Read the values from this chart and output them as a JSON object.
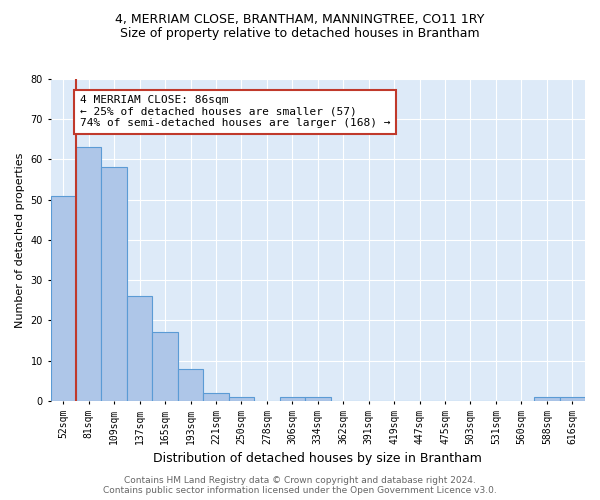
{
  "title_line1": "4, MERRIAM CLOSE, BRANTHAM, MANNINGTREE, CO11 1RY",
  "title_line2": "Size of property relative to detached houses in Brantham",
  "xlabel": "Distribution of detached houses by size in Brantham",
  "ylabel": "Number of detached properties",
  "bin_labels": [
    "52sqm",
    "81sqm",
    "109sqm",
    "137sqm",
    "165sqm",
    "193sqm",
    "221sqm",
    "250sqm",
    "278sqm",
    "306sqm",
    "334sqm",
    "362sqm",
    "391sqm",
    "419sqm",
    "447sqm",
    "475sqm",
    "503sqm",
    "531sqm",
    "560sqm",
    "588sqm",
    "616sqm"
  ],
  "bin_values": [
    51,
    63,
    58,
    26,
    17,
    8,
    2,
    1,
    0,
    1,
    1,
    0,
    0,
    0,
    0,
    0,
    0,
    0,
    0,
    1,
    1
  ],
  "bar_color": "#aec6e8",
  "bar_edge_color": "#5b9bd5",
  "vline_x_index": 1,
  "vline_color": "#c0392b",
  "annotation_text": "4 MERRIAM CLOSE: 86sqm\n← 25% of detached houses are smaller (57)\n74% of semi-detached houses are larger (168) →",
  "annotation_box_color": "#ffffff",
  "annotation_box_edge": "#c0392b",
  "ylim": [
    0,
    80
  ],
  "yticks": [
    0,
    10,
    20,
    30,
    40,
    50,
    60,
    70,
    80
  ],
  "footer": "Contains HM Land Registry data © Crown copyright and database right 2024.\nContains public sector information licensed under the Open Government Licence v3.0.",
  "bg_color": "#ddeaf8",
  "plot_bg": "#ffffff",
  "title_fontsize": 9,
  "subtitle_fontsize": 9,
  "ylabel_fontsize": 8,
  "xlabel_fontsize": 9,
  "tick_fontsize": 7,
  "annotation_fontsize": 8,
  "footer_fontsize": 6.5
}
